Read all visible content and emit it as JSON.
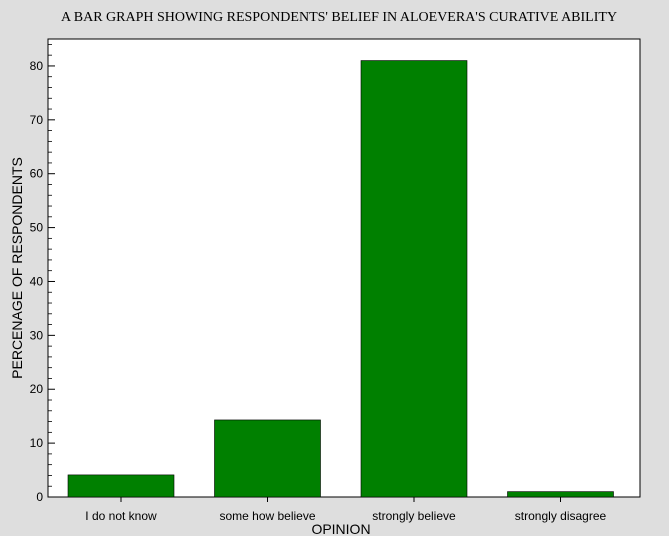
{
  "chart_data": {
    "type": "bar",
    "title": "A BAR GRAPH SHOWING RESPONDENTS' BELIEF IN ALOEVERA'S CURATIVE ABILITY",
    "xlabel": "OPINION",
    "ylabel": "PERCENAGE OF RESPONDENTS",
    "categories": [
      "I do not know",
      "some how believe",
      "strongly believe",
      "strongly disagree"
    ],
    "values": [
      4.1,
      14.3,
      81.0,
      1.0
    ],
    "ylim": [
      0,
      85
    ],
    "yticks": [
      "0",
      "10",
      "20",
      "30",
      "40",
      "50",
      "60",
      "70",
      "80"
    ],
    "bar_color": "#008000",
    "plot_background": "#ffffff",
    "page_background": "#dedede",
    "grid": false,
    "legend": "none"
  }
}
